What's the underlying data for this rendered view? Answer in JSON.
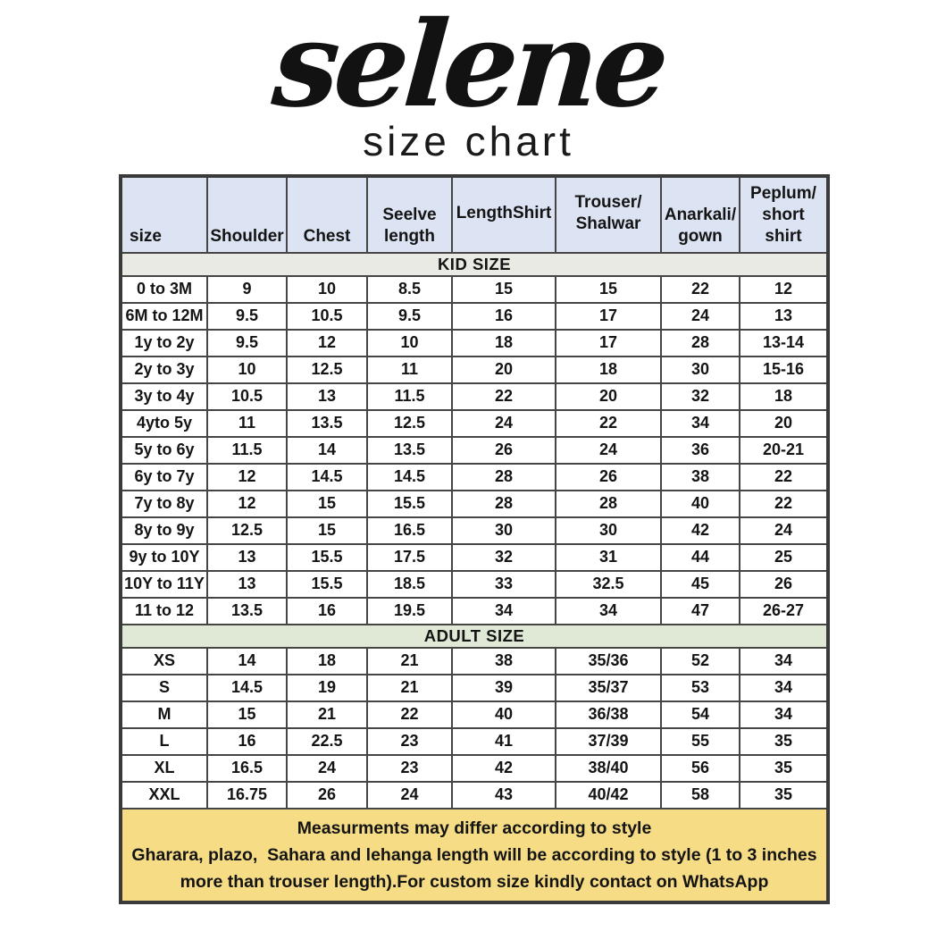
{
  "brand": {
    "name": "selene",
    "subtitle": "size chart"
  },
  "colors": {
    "header_bg": "#dce3f2",
    "kid_banner_bg": "#e9eae4",
    "adult_banner_bg": "#dfe9d6",
    "footer_bg": "#f6dc85",
    "border": "#454545"
  },
  "table": {
    "columns": [
      "size",
      "Shoulder",
      "Chest",
      "Seelve\nlength",
      "LengthShirt",
      "Trouser/\nShalwar",
      "Anarkali/\ngown",
      "Peplum/\nshort\nshirt"
    ],
    "sections": [
      {
        "title": "KID SIZE",
        "rows": [
          [
            "0 to 3M",
            "9",
            "10",
            "8.5",
            "15",
            "15",
            "22",
            "12"
          ],
          [
            "6M to 12M",
            "9.5",
            "10.5",
            "9.5",
            "16",
            "17",
            "24",
            "13"
          ],
          [
            "1y to 2y",
            "9.5",
            "12",
            "10",
            "18",
            "17",
            "28",
            "13-14"
          ],
          [
            "2y to 3y",
            "10",
            "12.5",
            "11",
            "20",
            "18",
            "30",
            "15-16"
          ],
          [
            "3y to 4y",
            "10.5",
            "13",
            "11.5",
            "22",
            "20",
            "32",
            "18"
          ],
          [
            "4yto 5y",
            "11",
            "13.5",
            "12.5",
            "24",
            "22",
            "34",
            "20"
          ],
          [
            "5y to 6y",
            "11.5",
            "14",
            "13.5",
            "26",
            "24",
            "36",
            "20-21"
          ],
          [
            "6y to 7y",
            "12",
            "14.5",
            "14.5",
            "28",
            "26",
            "38",
            "22"
          ],
          [
            "7y to 8y",
            "12",
            "15",
            "15.5",
            "28",
            "28",
            "40",
            "22"
          ],
          [
            "8y to 9y",
            "12.5",
            "15",
            "16.5",
            "30",
            "30",
            "42",
            "24"
          ],
          [
            "9y to 10Y",
            "13",
            "15.5",
            "17.5",
            "32",
            "31",
            "44",
            "25"
          ],
          [
            "10Y to 11Y",
            "13",
            "15.5",
            "18.5",
            "33",
            "32.5",
            "45",
            "26"
          ],
          [
            "11 to 12",
            "13.5",
            "16",
            "19.5",
            "34",
            "34",
            "47",
            "26-27"
          ]
        ]
      },
      {
        "title": "ADULT SIZE",
        "rows": [
          [
            "XS",
            "14",
            "18",
            "21",
            "38",
            "35/36",
            "52",
            "34"
          ],
          [
            "S",
            "14.5",
            "19",
            "21",
            "39",
            "35/37",
            "53",
            "34"
          ],
          [
            "M",
            "15",
            "21",
            "22",
            "40",
            "36/38",
            "54",
            "34"
          ],
          [
            "L",
            "16",
            "22.5",
            "23",
            "41",
            "37/39",
            "55",
            "35"
          ],
          [
            "XL",
            "16.5",
            "24",
            "23",
            "42",
            "38/40",
            "56",
            "35"
          ],
          [
            "XXL",
            "16.75",
            "26",
            "24",
            "43",
            "40/42",
            "58",
            "35"
          ]
        ]
      }
    ],
    "footer_lines": [
      "Measurments may differ according to style",
      "Gharara, plazo,  Sahara and lehanga length will be according to style (1 to 3 inches more than trouser length).For custom size kindly contact on WhatsApp"
    ]
  }
}
